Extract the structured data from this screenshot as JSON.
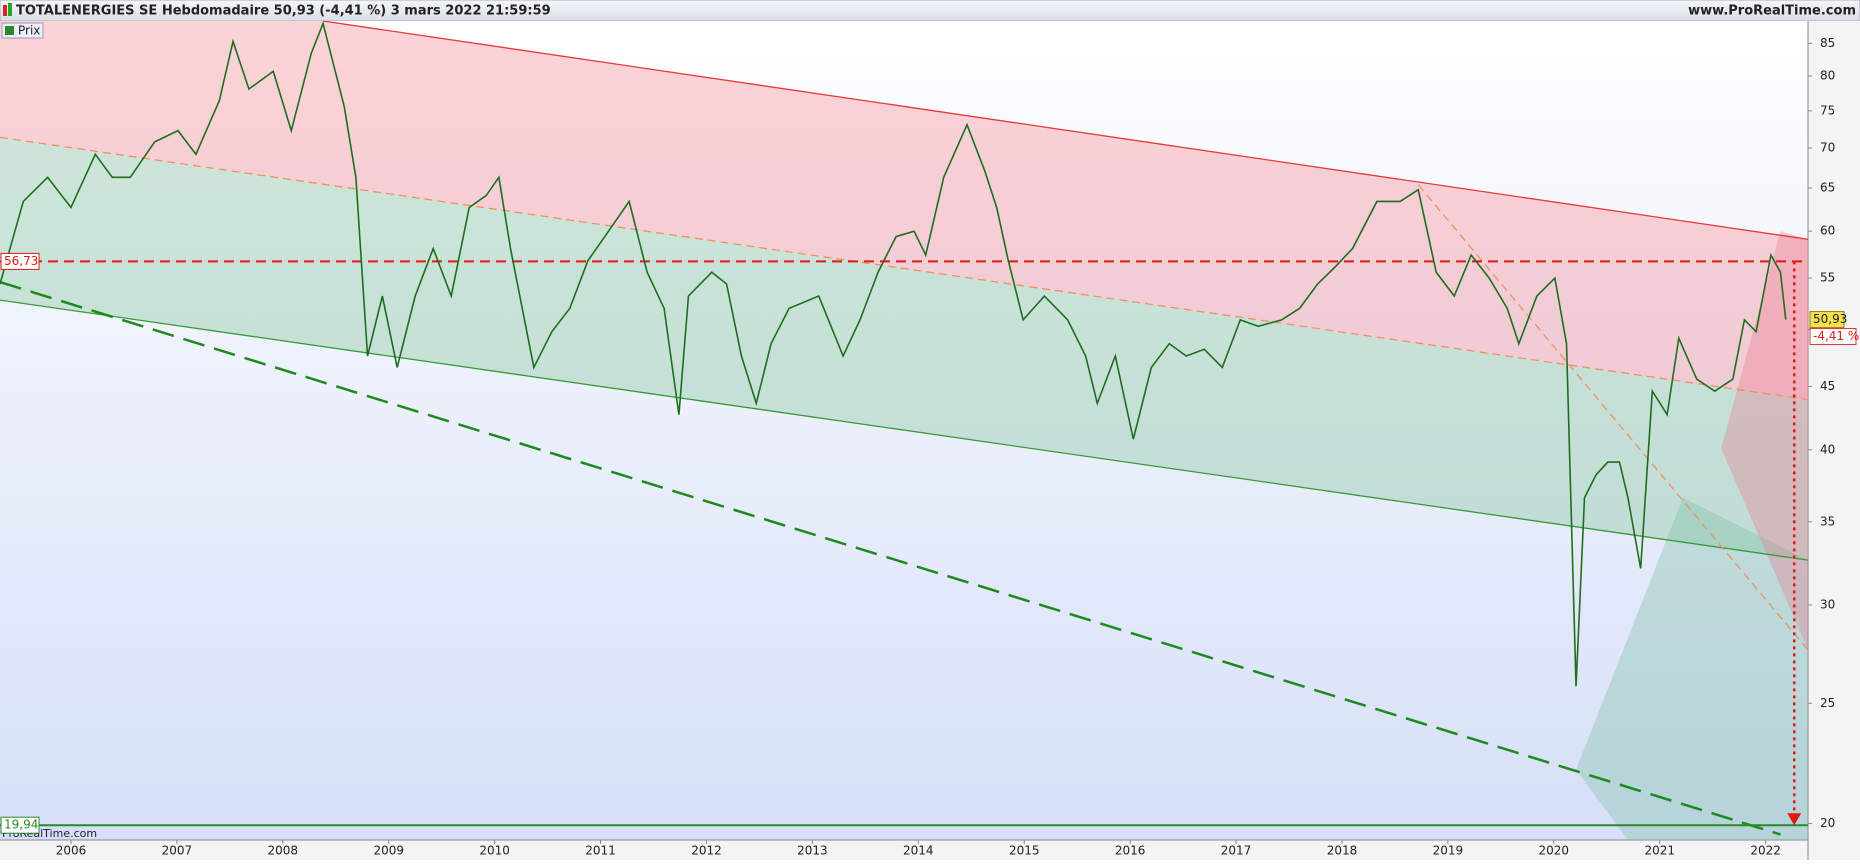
{
  "chart_data": {
    "type": "line",
    "title": "TOTALENERGIES SE Hebdomadaire 50,93 (-4,41 %) 3 mars 2022 21:59:59",
    "source": "www.ProRealTime.com",
    "watermark": "ProRealTime.com",
    "log_scale": true,
    "xlim": [
      2005.33,
      2022.4
    ],
    "xticks": [
      2006,
      2007,
      2008,
      2009,
      2010,
      2011,
      2012,
      2013,
      2014,
      2015,
      2016,
      2017,
      2018,
      2019,
      2020,
      2021,
      2022
    ],
    "ylim": [
      19.4,
      88.6
    ],
    "yticks": [
      20,
      25,
      30,
      35,
      40,
      45,
      50,
      55,
      60,
      65,
      70,
      75,
      80,
      85
    ],
    "x": [
      2005.33,
      2005.55,
      2005.78,
      2006.0,
      2006.23,
      2006.39,
      2006.56,
      2006.79,
      2007.01,
      2007.18,
      2007.4,
      2007.53,
      2007.68,
      2007.91,
      2008.08,
      2008.27,
      2008.38,
      2008.58,
      2008.69,
      2008.8,
      2008.94,
      2009.08,
      2009.25,
      2009.42,
      2009.59,
      2009.76,
      2009.92,
      2010.04,
      2010.15,
      2010.37,
      2010.54,
      2010.71,
      2010.88,
      2011.04,
      2011.27,
      2011.44,
      2011.6,
      2011.74,
      2011.83,
      2012.05,
      2012.19,
      2012.33,
      2012.47,
      2012.61,
      2012.78,
      2013.06,
      2013.29,
      2013.45,
      2013.62,
      2013.79,
      2013.96,
      2014.07,
      2014.24,
      2014.46,
      2014.63,
      2014.74,
      2014.85,
      2014.99,
      2015.19,
      2015.41,
      2015.58,
      2015.69,
      2015.86,
      2016.03,
      2016.2,
      2016.37,
      2016.53,
      2016.7,
      2016.87,
      2017.04,
      2017.21,
      2017.43,
      2017.6,
      2017.77,
      2017.94,
      2018.1,
      2018.33,
      2018.55,
      2018.72,
      2018.89,
      2019.06,
      2019.22,
      2019.39,
      2019.56,
      2019.67,
      2019.84,
      2020.01,
      2020.12,
      2020.21,
      2020.29,
      2020.4,
      2020.51,
      2020.62,
      2020.7,
      2020.82,
      2020.93,
      2021.07,
      2021.18,
      2021.35,
      2021.52,
      2021.69,
      2021.8,
      2021.91,
      2022.05,
      2022.14,
      2022.19
    ],
    "series": [
      {
        "name": "Prix",
        "color": "#1f6e1f",
        "values": [
          54.4,
          63.4,
          66.3,
          62.7,
          69.2,
          66.3,
          66.3,
          70.8,
          72.3,
          69.2,
          76.4,
          85.3,
          78.1,
          80.7,
          72.3,
          83.5,
          88.2,
          75.6,
          66.3,
          47.6,
          53.2,
          46.6,
          53.2,
          58.1,
          53.2,
          62.7,
          64.1,
          66.3,
          58.1,
          46.6,
          49.8,
          52.0,
          56.8,
          59.4,
          63.4,
          55.6,
          52.0,
          42.7,
          53.2,
          55.6,
          54.4,
          47.6,
          43.6,
          48.7,
          52.0,
          53.2,
          47.6,
          50.9,
          55.6,
          59.4,
          60.0,
          57.4,
          66.3,
          73.1,
          67.0,
          62.7,
          56.8,
          50.9,
          53.2,
          50.9,
          47.6,
          43.6,
          47.6,
          40.8,
          46.6,
          48.7,
          47.6,
          48.2,
          46.6,
          50.9,
          50.3,
          50.9,
          52.0,
          54.4,
          56.2,
          58.1,
          63.4,
          63.4,
          64.8,
          55.6,
          53.2,
          57.4,
          55.0,
          52.0,
          48.7,
          53.2,
          55.0,
          48.7,
          25.8,
          36.6,
          38.2,
          39.1,
          39.1,
          36.6,
          32.1,
          44.6,
          42.7,
          49.2,
          45.6,
          44.6,
          45.6,
          50.9,
          49.8,
          57.4,
          55.6,
          50.93
        ]
      }
    ],
    "last": {
      "value": 50.93,
      "label": "50,93"
    },
    "change": {
      "value": -4.41,
      "label": "-4,41 %"
    },
    "hlines": [
      {
        "value": 56.73,
        "label": "56,73",
        "color": "#e01818",
        "style": "dashed"
      },
      {
        "value": 19.94,
        "label": "19,94",
        "color": "#2a8a2a",
        "style": "solid"
      }
    ],
    "trendlines": [
      {
        "x": [
          2008.38,
          2022.4
        ],
        "y": [
          88.6,
          59.1
        ],
        "color": "#e83838",
        "style": "solid"
      },
      {
        "x": [
          2005.33,
          2022.4
        ],
        "y": [
          71.4,
          43.9
        ],
        "color": "#f09060",
        "style": "dashed"
      },
      {
        "x": [
          2005.33,
          2022.4
        ],
        "y": [
          52.8,
          32.6
        ],
        "color": "#3a9a3a",
        "style": "solid"
      },
      {
        "x": [
          2005.33,
          2022.14
        ],
        "y": [
          54.6,
          19.6
        ],
        "color": "#1e8a1e",
        "style": "longdash"
      },
      {
        "x": [
          2018.72,
          2022.4
        ],
        "y": [
          65.4,
          27.6
        ],
        "color": "#f09060",
        "style": "dashed"
      }
    ],
    "shapes": [
      {
        "x": [
          2020.21,
          2021.22,
          2022.4,
          2022.4,
          2020.7
        ],
        "y": [
          22.1,
          36.6,
          32.6,
          19.4,
          19.4
        ],
        "color": "rgba(120,190,160,0.35)"
      },
      {
        "x": [
          2021.58,
          2022.14,
          2022.4,
          2022.4
        ],
        "y": [
          40.1,
          60.0,
          59.1,
          27.6
        ],
        "color": "rgba(235,120,140,0.35)"
      }
    ],
    "arrow": {
      "x": 2022.27,
      "y": [
        56.73,
        19.94
      ],
      "color": "#e01818"
    }
  }
}
